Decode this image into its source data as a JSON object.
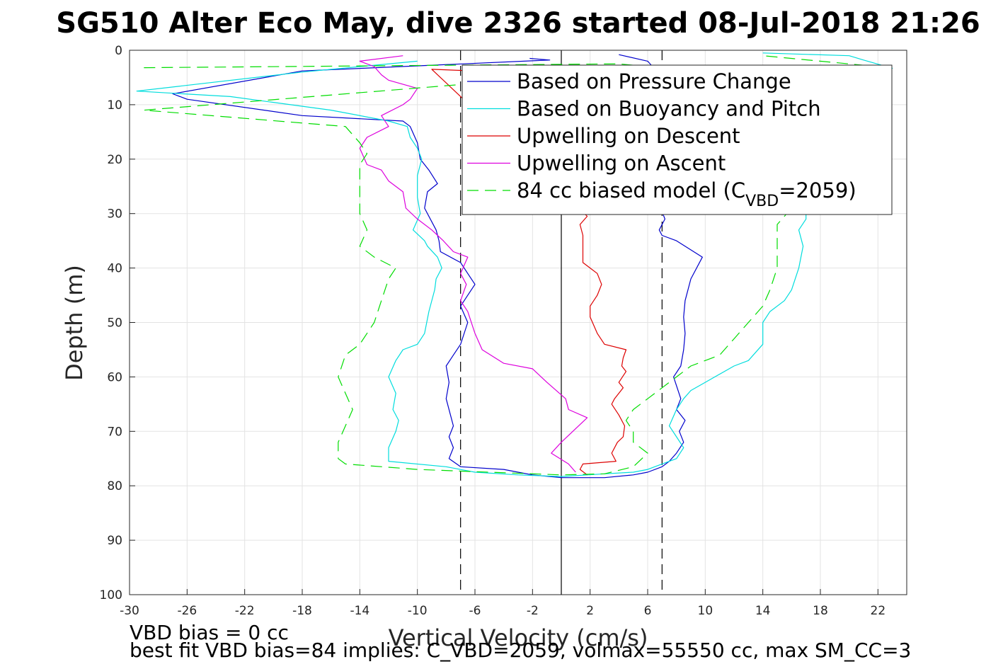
{
  "chart_data": {
    "type": "line",
    "title": "SG510 Alter Eco May, dive 2326 started 08-Jul-2018 21:26",
    "xlabel": "Vertical Velocity (cm/s)",
    "ylabel": "Depth (m)",
    "xlim": [
      -30,
      24
    ],
    "ylim": [
      0,
      100
    ],
    "y_reversed": true,
    "grid": true,
    "legend_placement": "top-right",
    "x_ticks": [
      "-30",
      "-26",
      "-22",
      "-18",
      "-14",
      "-10",
      "-6",
      "-2",
      "2",
      "6",
      "10",
      "14",
      "18",
      "22"
    ],
    "y_ticks": [
      "0",
      "10",
      "20",
      "30",
      "40",
      "50",
      "60",
      "70",
      "80",
      "90",
      "100"
    ],
    "reference_lines": [
      {
        "x": 0,
        "style": "solid",
        "color": "#000000"
      },
      {
        "x": -7,
        "style": "dashed",
        "color": "#000000"
      },
      {
        "x": 7,
        "style": "dashed",
        "color": "#000000"
      }
    ],
    "series": [
      {
        "name": "Based on Pressure Change",
        "color": "#0000cc",
        "dash": "none",
        "points": [
          [
            -2.2,
            1.5
          ],
          [
            -0.8,
            1.8
          ],
          [
            -18,
            3.8
          ],
          [
            -27,
            8
          ],
          [
            -26,
            9
          ],
          [
            -18,
            12
          ],
          [
            -11,
            13
          ],
          [
            -10.5,
            14
          ],
          [
            -10,
            17
          ],
          [
            -9.8,
            20
          ],
          [
            -9.2,
            22
          ],
          [
            -8.6,
            24.5
          ],
          [
            -9.3,
            26
          ],
          [
            -9.5,
            29
          ],
          [
            -8.7,
            33
          ],
          [
            -8.5,
            35
          ],
          [
            -8.4,
            37
          ],
          [
            -7,
            39
          ],
          [
            -6.5,
            41
          ],
          [
            -6,
            43
          ],
          [
            -6.5,
            45
          ],
          [
            -7,
            47
          ],
          [
            -6.5,
            50
          ],
          [
            -7,
            54
          ],
          [
            -7.5,
            56
          ],
          [
            -8,
            58
          ],
          [
            -7.8,
            61
          ],
          [
            -8,
            64
          ],
          [
            -7.7,
            67
          ],
          [
            -7.5,
            69
          ],
          [
            -7.8,
            71
          ],
          [
            -7.5,
            73
          ],
          [
            -7.8,
            75
          ],
          [
            -7,
            76.5
          ],
          [
            -4,
            77
          ],
          [
            -3,
            77.5
          ],
          [
            -2,
            78
          ],
          [
            0,
            78.5
          ],
          [
            3,
            78.5
          ],
          [
            5,
            78
          ],
          [
            6,
            77.5
          ],
          [
            7,
            76.5
          ],
          [
            7.5,
            75.5
          ],
          [
            8,
            74
          ],
          [
            8.5,
            72
          ],
          [
            8.2,
            70
          ],
          [
            8.6,
            68
          ],
          [
            8,
            66
          ],
          [
            8.3,
            64
          ],
          [
            7.8,
            60
          ],
          [
            8.3,
            58
          ],
          [
            8.5,
            55
          ],
          [
            8.6,
            52
          ],
          [
            8.5,
            49
          ],
          [
            8.6,
            46
          ],
          [
            9,
            42
          ],
          [
            9.8,
            38
          ],
          [
            8,
            35
          ],
          [
            7,
            34
          ],
          [
            6.8,
            33
          ],
          [
            7.2,
            31
          ],
          [
            6.9,
            29
          ],
          [
            7,
            25
          ],
          [
            6.8,
            20
          ],
          [
            6.5,
            10
          ],
          [
            6.5,
            3.5
          ],
          [
            6,
            2
          ],
          [
            4,
            0.8
          ]
        ]
      },
      {
        "name": "Based on Buoyancy and Pitch",
        "color": "#00dddd",
        "dash": "none",
        "points": [
          [
            -10,
            2
          ],
          [
            -18,
            4
          ],
          [
            -29.5,
            7.5
          ],
          [
            -23,
            8.5
          ],
          [
            -16,
            11
          ],
          [
            -12,
            13
          ],
          [
            -10.7,
            14
          ],
          [
            -10.5,
            16
          ],
          [
            -10,
            18
          ],
          [
            -9.7,
            20
          ],
          [
            -10,
            23
          ],
          [
            -10,
            27
          ],
          [
            -9.8,
            30
          ],
          [
            -10.3,
            33
          ],
          [
            -9.5,
            35
          ],
          [
            -9.3,
            36
          ],
          [
            -8.6,
            38
          ],
          [
            -8.3,
            40
          ],
          [
            -8.7,
            42
          ],
          [
            -8.8,
            44
          ],
          [
            -9.2,
            48
          ],
          [
            -9.5,
            52
          ],
          [
            -10,
            54
          ],
          [
            -11,
            55
          ],
          [
            -11.5,
            57
          ],
          [
            -12,
            60
          ],
          [
            -11.5,
            63
          ],
          [
            -11.7,
            66
          ],
          [
            -11.3,
            68
          ],
          [
            -11.5,
            70
          ],
          [
            -12,
            73
          ],
          [
            -12,
            75.5
          ],
          [
            -8,
            76.5
          ],
          [
            -6,
            77.5
          ],
          [
            -3,
            78
          ],
          [
            0,
            78.3
          ],
          [
            3,
            77.8
          ],
          [
            5,
            77.5
          ],
          [
            6,
            77
          ],
          [
            7,
            76
          ],
          [
            8,
            75
          ],
          [
            8.5,
            73
          ],
          [
            8,
            71
          ],
          [
            7.5,
            69
          ],
          [
            8,
            66
          ],
          [
            8.5,
            64
          ],
          [
            9,
            62.5
          ],
          [
            10,
            61
          ],
          [
            12,
            58
          ],
          [
            13,
            57
          ],
          [
            14,
            54
          ],
          [
            14,
            50
          ],
          [
            14.5,
            48
          ],
          [
            15.5,
            46
          ],
          [
            16,
            44
          ],
          [
            16.5,
            40
          ],
          [
            16.8,
            36
          ],
          [
            16.5,
            33
          ],
          [
            17,
            31
          ],
          [
            17,
            25
          ],
          [
            16.8,
            20
          ],
          [
            16.8,
            15
          ],
          [
            17,
            10
          ],
          [
            18,
            6
          ],
          [
            23,
            3.3
          ],
          [
            21,
            1.8
          ],
          [
            20,
            1
          ],
          [
            14,
            0.5
          ]
        ]
      },
      {
        "name": "Upwelling on Descent",
        "color": "#dd0000",
        "dash": "none",
        "points": [
          [
            -4,
            4
          ],
          [
            -9,
            3.5
          ],
          [
            1.8,
            30.5
          ],
          [
            1.3,
            32
          ],
          [
            1.5,
            34
          ],
          [
            1.5,
            36
          ],
          [
            1.5,
            39
          ],
          [
            2.5,
            41
          ],
          [
            2.8,
            43
          ],
          [
            2.5,
            45
          ],
          [
            2,
            47
          ],
          [
            2,
            49
          ],
          [
            2.5,
            52
          ],
          [
            3,
            54
          ],
          [
            4.5,
            55
          ],
          [
            4.3,
            56.5
          ],
          [
            4.2,
            58
          ],
          [
            4.5,
            59
          ],
          [
            4,
            61
          ],
          [
            4.3,
            62
          ],
          [
            3.7,
            64
          ],
          [
            3.5,
            65
          ],
          [
            4,
            67
          ],
          [
            4.4,
            69
          ],
          [
            4.3,
            71
          ],
          [
            3.9,
            72
          ],
          [
            3.5,
            74
          ],
          [
            3.8,
            75.5
          ],
          [
            1.5,
            76
          ],
          [
            1.3,
            77
          ],
          [
            1.8,
            78
          ]
        ]
      },
      {
        "name": "Upwelling on Ascent",
        "color": "#dd00dd",
        "dash": "none",
        "points": [
          [
            1,
            77.5
          ],
          [
            0.5,
            76
          ],
          [
            -0.7,
            74
          ],
          [
            0,
            72
          ],
          [
            1.8,
            67.5
          ],
          [
            0.5,
            66
          ],
          [
            0.3,
            64
          ],
          [
            -1,
            61
          ],
          [
            -2,
            58.5
          ],
          [
            -4,
            57.5
          ],
          [
            -5.5,
            55
          ],
          [
            -6,
            52
          ],
          [
            -6.5,
            48
          ],
          [
            -7,
            46
          ],
          [
            -6.6,
            43
          ],
          [
            -7,
            41
          ],
          [
            -6.5,
            38
          ],
          [
            -7.5,
            37
          ],
          [
            -8.2,
            35
          ],
          [
            -9,
            33
          ],
          [
            -10,
            31
          ],
          [
            -10.8,
            29
          ],
          [
            -11,
            26
          ],
          [
            -12,
            24
          ],
          [
            -12.5,
            22
          ],
          [
            -13.5,
            21
          ],
          [
            -14,
            18
          ],
          [
            -13.5,
            16
          ],
          [
            -12,
            14
          ],
          [
            -12.5,
            12
          ],
          [
            -11,
            10
          ],
          [
            -10.5,
            9
          ],
          [
            -10,
            7
          ],
          [
            -12,
            5.5
          ],
          [
            -12.5,
            4.5
          ],
          [
            -13,
            3
          ],
          [
            -14,
            2
          ],
          [
            -11,
            1
          ]
        ]
      },
      {
        "name": "84 cc biased model (C<sub>VBD</sub>=2059)",
        "color": "#00dd00",
        "dash": "dashed",
        "points": [
          [
            -29,
            3.2
          ],
          [
            4,
            2.5
          ],
          [
            6,
            3
          ],
          [
            7,
            3.3
          ],
          [
            -29,
            11
          ],
          [
            -15,
            14
          ],
          [
            -14,
            17
          ],
          [
            -13.5,
            19
          ],
          [
            -14,
            21
          ],
          [
            -14,
            25
          ],
          [
            -14,
            30
          ],
          [
            -13.5,
            33
          ],
          [
            -14,
            36
          ],
          [
            -13,
            38
          ],
          [
            -11.5,
            40
          ],
          [
            -12,
            42
          ],
          [
            -12.5,
            46
          ],
          [
            -13,
            50
          ],
          [
            -14,
            54
          ],
          [
            -15,
            56
          ],
          [
            -15.5,
            60
          ],
          [
            -15,
            63
          ],
          [
            -14.5,
            66
          ],
          [
            -15,
            69
          ],
          [
            -15.5,
            72
          ],
          [
            -15.5,
            75
          ],
          [
            -15,
            76
          ],
          [
            -10,
            77
          ],
          [
            -5,
            77.5
          ],
          [
            0,
            78
          ],
          [
            3,
            77.8
          ],
          [
            5,
            76.5
          ],
          [
            5.6,
            75
          ],
          [
            6,
            74
          ],
          [
            5,
            72
          ],
          [
            5,
            70
          ],
          [
            4.5,
            68
          ],
          [
            5,
            66
          ],
          [
            6,
            64
          ],
          [
            7,
            62
          ],
          [
            8,
            60
          ],
          [
            9,
            58
          ],
          [
            11,
            56
          ],
          [
            12,
            53
          ],
          [
            13,
            50
          ],
          [
            14,
            47
          ],
          [
            14.5,
            44
          ],
          [
            15,
            40
          ],
          [
            15,
            36
          ],
          [
            15,
            32
          ],
          [
            16,
            29
          ],
          [
            16,
            25
          ],
          [
            16,
            20
          ],
          [
            16,
            15
          ],
          [
            17,
            10
          ],
          [
            20,
            5
          ],
          [
            22,
            3
          ],
          [
            14,
            1
          ]
        ]
      }
    ],
    "notes": [
      "VBD bias = 0 cc",
      "best fit VBD bias=84 implies: C_VBD=2059, volmax=55550 cc, max SM_CC=3"
    ]
  }
}
